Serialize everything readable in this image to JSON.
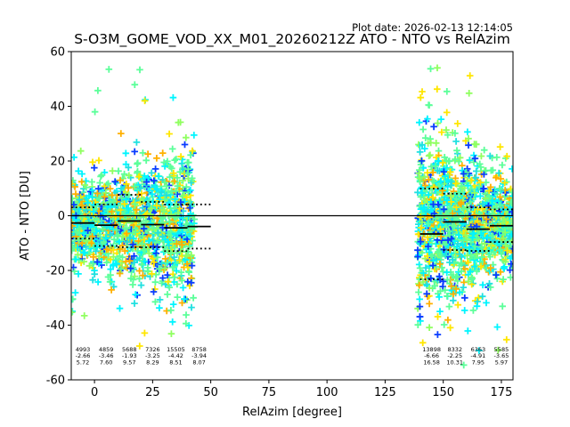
{
  "chart_data": {
    "type": "scatter",
    "title": "S-O3M_GOME_VOD_XX_M01_20260212Z ATO - NTO vs RelAzim",
    "plot_date": "Plot date: 2026-02-13 12:14:05",
    "xlabel": "RelAzim [degree]",
    "ylabel": "ATO - NTO [DU]",
    "xlim": [
      -10,
      180
    ],
    "ylim": [
      -60,
      60
    ],
    "xticks": [
      0,
      25,
      50,
      75,
      100,
      125,
      150,
      175
    ],
    "yticks": [
      -60,
      -40,
      -20,
      0,
      20,
      40,
      60
    ],
    "zero_line": 0,
    "colors": {
      "blue": "#0a3cff",
      "cyan": "#00f5ff",
      "aqua": "#20e0e0",
      "green": "#5cff9a",
      "lime": "#90ff60",
      "yellow": "#ffe600",
      "orange": "#ffb000"
    },
    "clusters": [
      {
        "xmin": -10,
        "xmax": 43,
        "ycenter": -3,
        "spread": 14,
        "count": 1400
      },
      {
        "xmin": 139,
        "xmax": 180,
        "ycenter": -3,
        "spread": 15,
        "count": 1300
      }
    ],
    "bins": [
      {
        "x0": -10,
        "x1": 0,
        "mean": -2.66,
        "std": 5.72,
        "n": 4993
      },
      {
        "x0": 0,
        "x1": 10,
        "mean": -3.46,
        "std": 7.6,
        "n": 4859
      },
      {
        "x0": 10,
        "x1": 20,
        "mean": -1.93,
        "std": 9.57,
        "n": 5688
      },
      {
        "x0": 20,
        "x1": 30,
        "mean": -3.25,
        "std": 8.29,
        "n": 7326
      },
      {
        "x0": 30,
        "x1": 40,
        "mean": -4.42,
        "std": 8.51,
        "n": 15505
      },
      {
        "x0": 40,
        "x1": 50,
        "mean": -3.94,
        "std": 8.07,
        "n": 8758
      },
      {
        "x0": 140,
        "x1": 150,
        "mean": -6.66,
        "std": 16.58,
        "n": 13898
      },
      {
        "x0": 150,
        "x1": 160,
        "mean": -2.25,
        "std": 10.31,
        "n": 8332
      },
      {
        "x0": 160,
        "x1": 170,
        "mean": -4.91,
        "std": 7.95,
        "n": 6363
      },
      {
        "x0": 170,
        "x1": 180,
        "mean": -3.65,
        "std": 5.97,
        "n": 5585
      }
    ],
    "bin_label_text": [
      {
        "n": "4993",
        "mean": "-2.66",
        "std": "5.72"
      },
      {
        "n": "4859",
        "mean": "-3.46",
        "std": "7.60"
      },
      {
        "n": "5688",
        "mean": "-1.93",
        "std": "9.57"
      },
      {
        "n": "7326",
        "mean": "-3.25",
        "std": "8.29"
      },
      {
        "n": "15505",
        "mean": "-4.42",
        "std": "8.51"
      },
      {
        "n": "8758",
        "mean": "-3.94",
        "std": "8.07"
      },
      {
        "n": "13898",
        "mean": "-6.66",
        "std": "16.58"
      },
      {
        "n": "8332",
        "mean": "-2.25",
        "std": "10.31"
      },
      {
        "n": "6363",
        "mean": "-4.91",
        "std": "7.95"
      },
      {
        "n": "5585",
        "mean": "-3.65",
        "std": "5.97"
      }
    ]
  }
}
